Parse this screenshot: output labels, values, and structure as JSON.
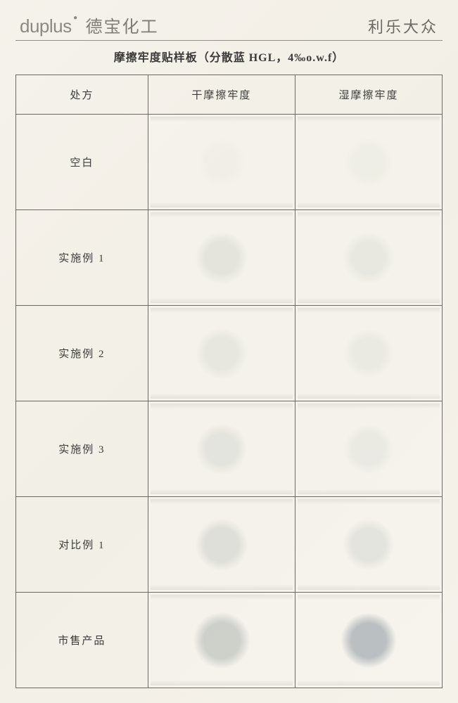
{
  "header": {
    "logo_en": "duplus",
    "logo_cn": "德宝化工",
    "right_brand": "利乐大众"
  },
  "title": {
    "prefix": "摩擦牢度贴样板（分散蓝 ",
    "code": "HGL",
    "mid": "，",
    "conc": "4‰o.w.f",
    "suffix": "）"
  },
  "table": {
    "columns": [
      "处方",
      "干摩擦牢度",
      "湿摩擦牢度"
    ],
    "rows": [
      {
        "label": "空白",
        "dry": {
          "diameter": 70,
          "color": "#e9e8e0",
          "opacity": 0.35
        },
        "wet": {
          "diameter": 70,
          "color": "#e7e6dd",
          "opacity": 0.38
        }
      },
      {
        "label": "实施例 1",
        "dry": {
          "diameter": 74,
          "color": "#d7d8d2",
          "opacity": 0.55
        },
        "wet": {
          "diameter": 72,
          "color": "#d9dbd6",
          "opacity": 0.45
        }
      },
      {
        "label": "实施例 2",
        "dry": {
          "diameter": 72,
          "color": "#dadcd6",
          "opacity": 0.5
        },
        "wet": {
          "diameter": 70,
          "color": "#dcded8",
          "opacity": 0.42
        }
      },
      {
        "label": "实施例 3",
        "dry": {
          "diameter": 72,
          "color": "#d6d8d2",
          "opacity": 0.52
        },
        "wet": {
          "diameter": 70,
          "color": "#dadcd6",
          "opacity": 0.42
        }
      },
      {
        "label": "对比例 1",
        "dry": {
          "diameter": 74,
          "color": "#cfd2cc",
          "opacity": 0.6
        },
        "wet": {
          "diameter": 72,
          "color": "#d2d5cf",
          "opacity": 0.52
        }
      },
      {
        "label": "市售产品",
        "dry": {
          "diameter": 80,
          "color": "#c2c6c1",
          "opacity": 0.78
        },
        "wet": {
          "diameter": 78,
          "color": "#b2b9bb",
          "opacity": 0.88
        }
      }
    ]
  },
  "style": {
    "page_bg": "#f4f1ea",
    "border_color": "#6b6b63",
    "text_color": "#3c3c3c",
    "header_text_color": "#8a8a82"
  }
}
